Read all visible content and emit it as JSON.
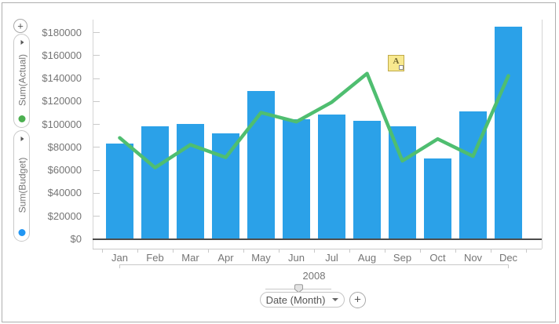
{
  "icons": {
    "plus": "+"
  },
  "left_panel": {
    "pills": [
      {
        "label": "Sum(Actual)",
        "dot_color": "#4CAF50"
      },
      {
        "label": "Sum(Budget)",
        "dot_color": "#2196F3"
      }
    ]
  },
  "bottom_controls": {
    "field_button_label": "Date (Month)"
  },
  "annotation": {
    "letter": "A"
  },
  "chart_data": {
    "type": "bar",
    "subtype": "combo bar+line",
    "categories": [
      "Jan",
      "Feb",
      "Mar",
      "Apr",
      "May",
      "Jun",
      "Jul",
      "Aug",
      "Sep",
      "Oct",
      "Nov",
      "Dec"
    ],
    "x_group_label": "2008",
    "series": [
      {
        "name": "Sum(Budget)",
        "type": "bar",
        "color": "#2BA1E8",
        "values": [
          83000,
          98000,
          100000,
          92000,
          129000,
          104000,
          108000,
          103000,
          98000,
          70000,
          111000,
          185000
        ]
      },
      {
        "name": "Sum(Actual)",
        "type": "line",
        "color": "#4FBE70",
        "values": [
          88000,
          62000,
          82000,
          71000,
          110000,
          102000,
          119000,
          144000,
          68000,
          87000,
          72000,
          142000
        ]
      }
    ],
    "y_axis": {
      "ticks": [
        {
          "value": 0,
          "label": "$0"
        },
        {
          "value": 20000,
          "label": "$20000"
        },
        {
          "value": 40000,
          "label": "$40000"
        },
        {
          "value": 60000,
          "label": "$60000"
        },
        {
          "value": 80000,
          "label": "$80000"
        },
        {
          "value": 100000,
          "label": "$100000"
        },
        {
          "value": 120000,
          "label": "$120000"
        },
        {
          "value": 140000,
          "label": "$140000"
        },
        {
          "value": 160000,
          "label": "$160000"
        },
        {
          "value": 180000,
          "label": "$180000"
        }
      ]
    },
    "ylim": [
      0,
      190000
    ],
    "grid": "off",
    "legend": "off"
  }
}
